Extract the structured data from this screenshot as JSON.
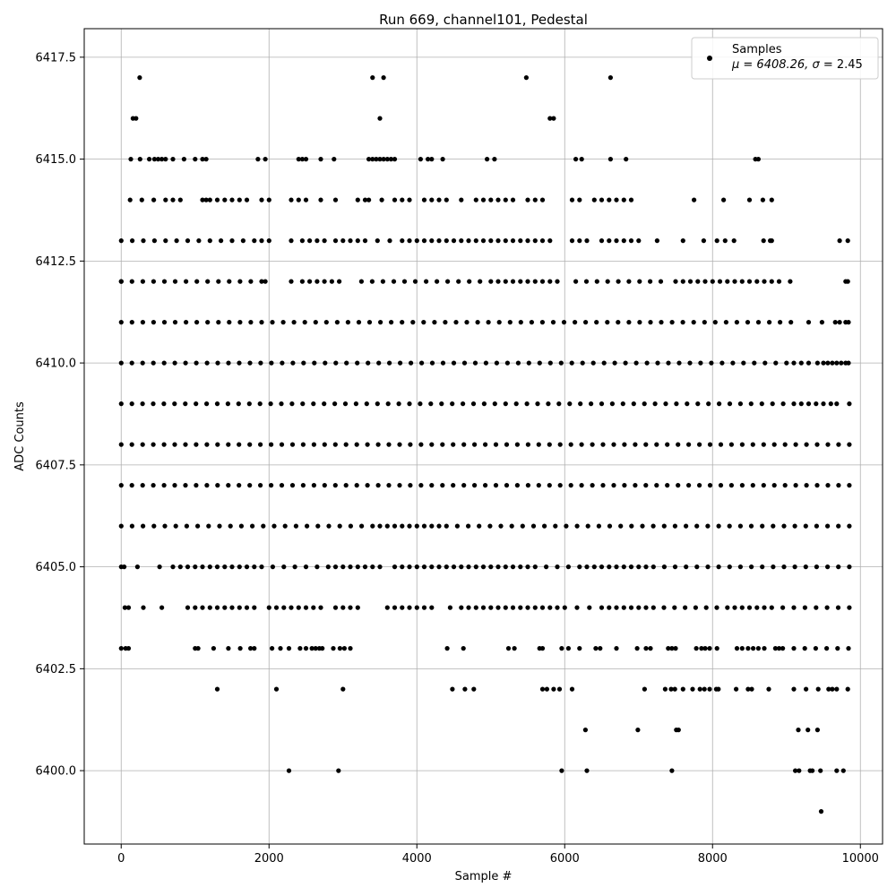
{
  "chart_data": {
    "type": "scatter",
    "title": "Run 669, channel101, Pedestal",
    "xlabel": "Sample #",
    "ylabel": "ADC Counts",
    "xlim": [
      -500,
      10300
    ],
    "ylim": [
      6398.2,
      6418.2
    ],
    "xticks": [
      0,
      2000,
      4000,
      6000,
      8000,
      10000
    ],
    "xtick_labels": [
      "0",
      "2000",
      "4000",
      "6000",
      "8000",
      "10000"
    ],
    "yticks": [
      6400.0,
      6402.5,
      6405.0,
      6407.5,
      6410.0,
      6412.5,
      6415.0,
      6417.5
    ],
    "ytick_labels": [
      "6400.0",
      "6402.5",
      "6405.0",
      "6407.5",
      "6410.0",
      "6412.5",
      "6415.0",
      "6417.5"
    ],
    "grid": true,
    "marker_color": "#000000",
    "legend": {
      "position": "top-right",
      "entries": [
        {
          "series_name": "Samples",
          "stats_prefix": "μ = 6408.26, ",
          "stats_sigma": "σ",
          "stats_suffix": " = 2.45"
        }
      ]
    },
    "sample_count": 9850,
    "series": [
      {
        "name": "Samples",
        "levels": [
          {
            "y": 6399,
            "ranges": [],
            "points": [
              9470
            ]
          },
          {
            "y": 6400,
            "ranges": [],
            "points": [
              2270,
              2940,
              5960,
              6300,
              7450,
              9120,
              9170,
              9320,
              9350,
              9460,
              9680,
              9770
            ]
          },
          {
            "y": 6401,
            "ranges": [
              [
                9160,
                9420
              ]
            ],
            "points": [
              6280,
              6990,
              7510,
              7540
            ]
          },
          {
            "y": 6402,
            "ranges": [
              [
                9100,
                9430
              ]
            ],
            "points": [
              1300,
              2100,
              3000,
              4480,
              4650,
              4770,
              5700,
              5760,
              5850,
              5930,
              6100,
              7080,
              7360,
              7440,
              7490,
              7600,
              7730,
              7830,
              7890,
              7960,
              8050,
              8080,
              8320,
              8480,
              8530,
              8760,
              9570,
              9620,
              9680,
              9830
            ]
          },
          {
            "y": 6403,
            "ranges": [
              [
                0,
                60
              ],
              [
                2040,
                2270
              ],
              [
                9100,
                9840
              ]
            ],
            "points": [
              100,
              1000,
              1040,
              1250,
              1450,
              1610,
              1750,
              1800,
              2420,
              2500,
              2580,
              2630,
              2680,
              2720,
              2870,
              2960,
              3020,
              3100,
              4410,
              4630,
              5240,
              5320,
              5660,
              5700,
              5960,
              6050,
              6200,
              6420,
              6480,
              6700,
              6980,
              7100,
              7160,
              7400,
              7450,
              7500,
              7780,
              7850,
              7900,
              7960,
              8060,
              8330,
              8400,
              8480,
              8550,
              8620,
              8700,
              8850,
              8900,
              8950
            ]
          },
          {
            "y": 6404,
            "ranges": [
              [
                6000,
                6500
              ],
              [
                7200,
                8200
              ],
              [
                8800,
                9850
              ]
            ],
            "points": [
              50,
              100,
              300,
              550,
              900,
              1000,
              1100,
              1200,
              1300,
              1400,
              1500,
              1600,
              1700,
              1800,
              2000,
              2100,
              2200,
              2300,
              2400,
              2500,
              2600,
              2700,
              2900,
              3000,
              3100,
              3200,
              3600,
              3700,
              3800,
              3900,
              4000,
              4100,
              4200,
              4450,
              4600,
              4700,
              4800,
              4900,
              5000,
              5100,
              5200,
              5300,
              5400,
              5500,
              5600,
              5700,
              5800,
              5900,
              6600,
              6700,
              6800,
              6900,
              7000,
              7100,
              8300,
              8400,
              8500,
              8600,
              8700
            ]
          },
          {
            "y": 6405,
            "ranges": [
              [
                1900,
                2800
              ],
              [
                5600,
                6200
              ],
              [
                7200,
                9850
              ]
            ],
            "points": [
              0,
              40,
              220,
              520,
              700,
              800,
              900,
              1000,
              1100,
              1200,
              1300,
              1400,
              1500,
              1600,
              1700,
              1800,
              2900,
              3000,
              3100,
              3200,
              3300,
              3400,
              3500,
              3700,
              3800,
              3900,
              4000,
              4100,
              4200,
              4300,
              4400,
              4500,
              4600,
              4700,
              4800,
              4900,
              5000,
              5100,
              5200,
              5300,
              5400,
              5500,
              6300,
              6400,
              6500,
              6600,
              6700,
              6800,
              6900,
              7000,
              7100
            ]
          },
          {
            "y": 6406,
            "ranges": [
              [
                0,
                3400
              ],
              [
                4400,
                9850
              ]
            ],
            "points": [
              3500,
              3600,
              3700,
              3800,
              3900,
              4000,
              4100,
              4200,
              4300
            ]
          },
          {
            "y": 6407,
            "ranges": [
              [
                0,
                9850
              ]
            ],
            "points": []
          },
          {
            "y": 6408,
            "ranges": [
              [
                0,
                9850
              ]
            ],
            "points": []
          },
          {
            "y": 6409,
            "ranges": [
              [
                0,
                9100
              ],
              [
                9680,
                9850
              ]
            ],
            "points": [
              9200,
              9300,
              9400,
              9500,
              9600
            ]
          },
          {
            "y": 6410,
            "ranges": [
              [
                0,
                9000
              ]
            ],
            "points": [
              9100,
              9200,
              9300,
              9420,
              9500,
              9560,
              9620,
              9680,
              9740,
              9800,
              9840
            ]
          },
          {
            "y": 6411,
            "ranges": [
              [
                0,
                9060
              ]
            ],
            "points": [
              9300,
              9480,
              9660,
              9720,
              9800,
              9840
            ]
          },
          {
            "y": 6412,
            "ranges": [
              [
                0,
                1900
              ],
              [
                3250,
                5000
              ],
              [
                6150,
                7300
              ]
            ],
            "points": [
              0,
              1950,
              2300,
              2450,
              2550,
              2650,
              2750,
              2850,
              2950,
              5100,
              5200,
              5300,
              5400,
              5500,
              5600,
              5700,
              5800,
              5900,
              7500,
              7600,
              7700,
              7800,
              7900,
              8000,
              8100,
              8200,
              8300,
              8400,
              8500,
              8600,
              8700,
              8800,
              8900,
              9050,
              9800,
              9830
            ]
          },
          {
            "y": 6413,
            "ranges": [
              [
                0,
                1800
              ],
              [
                3300,
                3800
              ]
            ],
            "points": [
              1900,
              2000,
              2300,
              2450,
              2550,
              2650,
              2750,
              2900,
              3000,
              3100,
              3200,
              3900,
              4000,
              4100,
              4200,
              4300,
              4400,
              4500,
              4600,
              4700,
              4800,
              4900,
              5000,
              5100,
              5200,
              5300,
              5400,
              5500,
              5600,
              5700,
              5800,
              6100,
              6200,
              6300,
              6500,
              6600,
              6700,
              6800,
              6900,
              7000,
              7250,
              7600,
              7880,
              8060,
              8170,
              8290,
              8690,
              8780,
              8800,
              9720,
              9830
            ]
          },
          {
            "y": 6414,
            "ranges": [
              [
                120,
                600
              ],
              [
                3350,
                3700
              ]
            ],
            "points": [
              700,
              800,
              1100,
              1150,
              1200,
              1300,
              1400,
              1500,
              1600,
              1700,
              1900,
              2000,
              2300,
              2400,
              2500,
              2700,
              2900,
              3200,
              3300,
              3800,
              3900,
              4100,
              4200,
              4300,
              4400,
              4600,
              4800,
              4900,
              5000,
              5100,
              5200,
              5300,
              5500,
              5600,
              5700,
              6100,
              6200,
              6400,
              6500,
              6600,
              6700,
              6800,
              6900,
              7750,
              8150,
              8500,
              8680,
              8800
            ]
          },
          {
            "y": 6415,
            "ranges": [
              [
                130,
                380
              ]
            ],
            "points": [
              450,
              500,
              550,
              600,
              700,
              850,
              1000,
              1100,
              1150,
              1850,
              1950,
              2400,
              2450,
              2500,
              2700,
              2880,
              3350,
              3400,
              3450,
              3500,
              3550,
              3600,
              3650,
              3700,
              4050,
              4150,
              4200,
              4350,
              4950,
              5050,
              6150,
              6230,
              6620,
              6830,
              8580,
              8620
            ]
          },
          {
            "y": 6416,
            "ranges": [],
            "points": [
              160,
              200,
              3500,
              5800,
              5850
            ]
          },
          {
            "y": 6417,
            "ranges": [],
            "points": [
              250,
              3400,
              3550,
              5480,
              6620
            ]
          }
        ]
      }
    ]
  }
}
